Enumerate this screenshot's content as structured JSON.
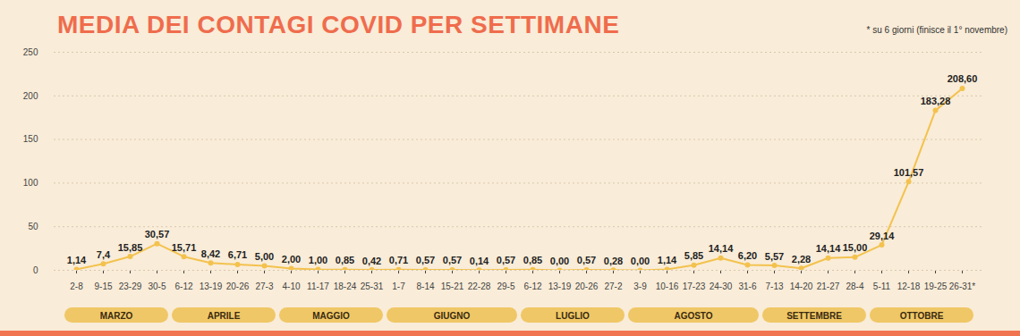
{
  "chart_data": {
    "type": "line",
    "title": "MEDIA DEI CONTAGI COVID PER SETTIMANE",
    "annotation": "* su 6 giorni (finisce il 1° novembre)",
    "categories": [
      "2-8",
      "9-15",
      "23-29",
      "30-5",
      "6-12",
      "13-19",
      "20-26",
      "27-3",
      "4-10",
      "11-17",
      "18-24",
      "25-31",
      "1-7",
      "8-14",
      "15-21",
      "22-28",
      "29-5",
      "6-12",
      "13-19",
      "20-26",
      "27-2",
      "3-9",
      "10-16",
      "17-23",
      "24-30",
      "31-6",
      "7-13",
      "14-20",
      "21-27",
      "28-4",
      "5-11",
      "12-18",
      "19-25",
      "26-31*"
    ],
    "groups": [
      "MARZO",
      "MARZO",
      "MARZO",
      "MARZO",
      "APRILE",
      "APRILE",
      "APRILE",
      "APRILE",
      "MAGGIO",
      "MAGGIO",
      "MAGGIO",
      "MAGGIO",
      "GIUGNO",
      "GIUGNO",
      "GIUGNO",
      "GIUGNO",
      "GIUGNO",
      "LUGLIO",
      "LUGLIO",
      "LUGLIO",
      "LUGLIO",
      "AGOSTO",
      "AGOSTO",
      "AGOSTO",
      "AGOSTO",
      "AGOSTO",
      "SETTEMBRE",
      "SETTEMBRE",
      "SETTEMBRE",
      "SETTEMBRE",
      "OTTOBRE",
      "OTTOBRE",
      "OTTOBRE",
      "OTTOBRE"
    ],
    "values": [
      1.14,
      7.4,
      15.85,
      30.57,
      15.71,
      8.42,
      6.71,
      5.0,
      2.0,
      1.0,
      0.85,
      0.42,
      0.71,
      0.57,
      0.57,
      0.14,
      0.57,
      0.85,
      0.0,
      0.57,
      0.28,
      0.0,
      1.14,
      5.85,
      14.14,
      6.2,
      5.57,
      2.28,
      14.14,
      15.0,
      29.14,
      101.57,
      183.28,
      208.6
    ],
    "value_labels": [
      "1,14",
      "7,4",
      "15,85",
      "30,57",
      "15,71",
      "8,42",
      "6,71",
      "5,00",
      "2,00",
      "1,00",
      "0,85",
      "0,42",
      "0,71",
      "0,57",
      "0,57",
      "0,14",
      "0,57",
      "0,85",
      "0,00",
      "0,57",
      "0,28",
      "0,00",
      "1,14",
      "5,85",
      "14,14",
      "6,20",
      "5,57",
      "2,28",
      "14,14",
      "15,00",
      "29,14",
      "101,57",
      "183,28",
      "208,60"
    ],
    "color": "#f3c24e",
    "ylim": [
      0,
      250
    ],
    "yticks": [
      0,
      50,
      100,
      150,
      200,
      250
    ],
    "grid": true,
    "data_labels": true,
    "marker": "circle"
  }
}
